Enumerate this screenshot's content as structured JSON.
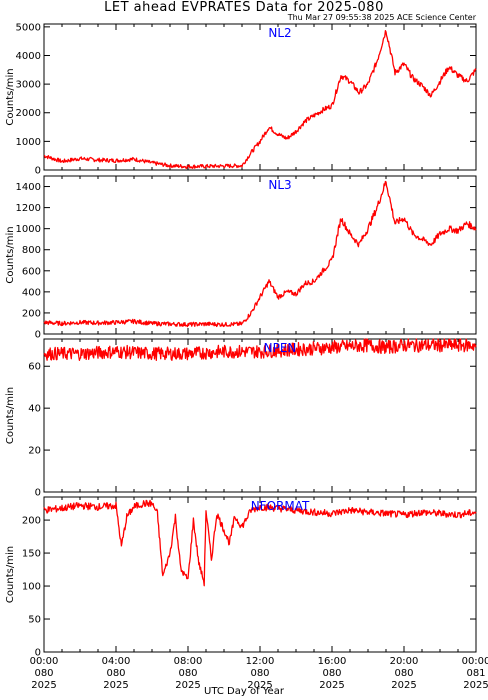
{
  "title": "LET ahead EVPRATES Data for 2025-080",
  "timestamp": "Thu Mar 27 09:55:38 2025 ACE Science Center",
  "xlabel": "UTC Day of Year",
  "colors": {
    "trace": "#ff0000",
    "panel_label": "#0000ff",
    "axes": "#000000"
  },
  "chart_data": [
    {
      "type": "line",
      "name": "NL2",
      "ylabel": "Counts/min",
      "ylim": [
        0,
        5100
      ],
      "yticks": [
        0,
        1000,
        2000,
        3000,
        4000,
        5000
      ],
      "x": [
        0,
        1,
        2,
        3,
        4,
        5,
        6,
        7,
        8,
        9,
        10,
        11,
        11.5,
        12,
        12.5,
        13,
        13.5,
        14,
        14.5,
        15,
        15.5,
        16,
        16.5,
        17,
        17.5,
        18,
        18.5,
        19,
        19.5,
        20,
        20.5,
        21,
        21.5,
        22,
        22.5,
        23,
        23.5,
        24
      ],
      "y": [
        500,
        300,
        400,
        350,
        330,
        380,
        250,
        150,
        120,
        130,
        140,
        150,
        600,
        1000,
        1500,
        1250,
        1100,
        1350,
        1700,
        1900,
        2100,
        2250,
        3300,
        3100,
        2700,
        3000,
        3800,
        4900,
        3400,
        3700,
        3200,
        2950,
        2600,
        3100,
        3600,
        3300,
        3100,
        3500
      ]
    },
    {
      "type": "line",
      "name": "NL3",
      "ylabel": "Counts/min",
      "ylim": [
        0,
        1500
      ],
      "yticks": [
        0,
        200,
        400,
        600,
        800,
        1000,
        1200,
        1400
      ],
      "x": [
        0,
        1,
        2,
        3,
        4,
        5,
        6,
        7,
        8,
        9,
        10,
        11,
        11.5,
        12,
        12.5,
        13,
        13.5,
        14,
        14.5,
        15,
        15.5,
        16,
        16.5,
        17,
        17.5,
        18,
        18.5,
        19,
        19.5,
        20,
        20.5,
        21,
        21.5,
        22,
        22.5,
        23,
        23.5,
        24
      ],
      "y": [
        110,
        100,
        110,
        105,
        110,
        120,
        100,
        95,
        90,
        95,
        90,
        95,
        200,
        350,
        500,
        350,
        400,
        380,
        480,
        500,
        600,
        700,
        1100,
        950,
        850,
        1000,
        1200,
        1450,
        1050,
        1100,
        950,
        900,
        850,
        950,
        1000,
        980,
        1050,
        1000
      ]
    },
    {
      "type": "line",
      "name": "NPEN",
      "ylabel": "Counts/min",
      "ylim": [
        0,
        73
      ],
      "yticks": [
        0,
        20,
        40,
        60
      ],
      "x": [
        0,
        2,
        4,
        6,
        8,
        10,
        12,
        14,
        16,
        18,
        19,
        20,
        22,
        24
      ],
      "y": [
        66,
        66,
        67,
        66,
        66,
        67,
        67,
        68,
        69,
        70,
        69,
        70,
        70,
        70
      ]
    },
    {
      "type": "line",
      "name": "NFORMAT",
      "ylabel": "Counts/min",
      "ylim": [
        0,
        235
      ],
      "yticks": [
        0,
        50,
        100,
        150,
        200
      ],
      "x": [
        0,
        1,
        2,
        3,
        4,
        4.3,
        4.6,
        5,
        5.5,
        6,
        6.3,
        6.6,
        7,
        7.3,
        7.6,
        8,
        8.3,
        8.6,
        8.9,
        9,
        9.3,
        9.6,
        10,
        10.3,
        10.6,
        11,
        11.5,
        12,
        13,
        14,
        15,
        16,
        17,
        18,
        19,
        20,
        21,
        22,
        23,
        24
      ],
      "y": [
        215,
        218,
        222,
        220,
        222,
        160,
        205,
        220,
        225,
        225,
        210,
        115,
        150,
        205,
        125,
        110,
        200,
        135,
        105,
        215,
        140,
        210,
        185,
        165,
        205,
        190,
        215,
        220,
        218,
        215,
        212,
        210,
        215,
        212,
        210,
        208,
        212,
        210,
        208,
        212
      ]
    }
  ],
  "xticks": [
    {
      "x": 0,
      "time": "00:00",
      "doy": "080",
      "year": "2025"
    },
    {
      "x": 4,
      "time": "04:00",
      "doy": "080",
      "year": "2025"
    },
    {
      "x": 8,
      "time": "08:00",
      "doy": "080",
      "year": "2025"
    },
    {
      "x": 12,
      "time": "12:00",
      "doy": "080",
      "year": "2025"
    },
    {
      "x": 16,
      "time": "16:00",
      "doy": "080",
      "year": "2025"
    },
    {
      "x": 20,
      "time": "20:00",
      "doy": "080",
      "year": "2025"
    },
    {
      "x": 24,
      "time": "00:00",
      "doy": "081",
      "year": "2025"
    }
  ],
  "xlim": [
    0,
    24
  ]
}
